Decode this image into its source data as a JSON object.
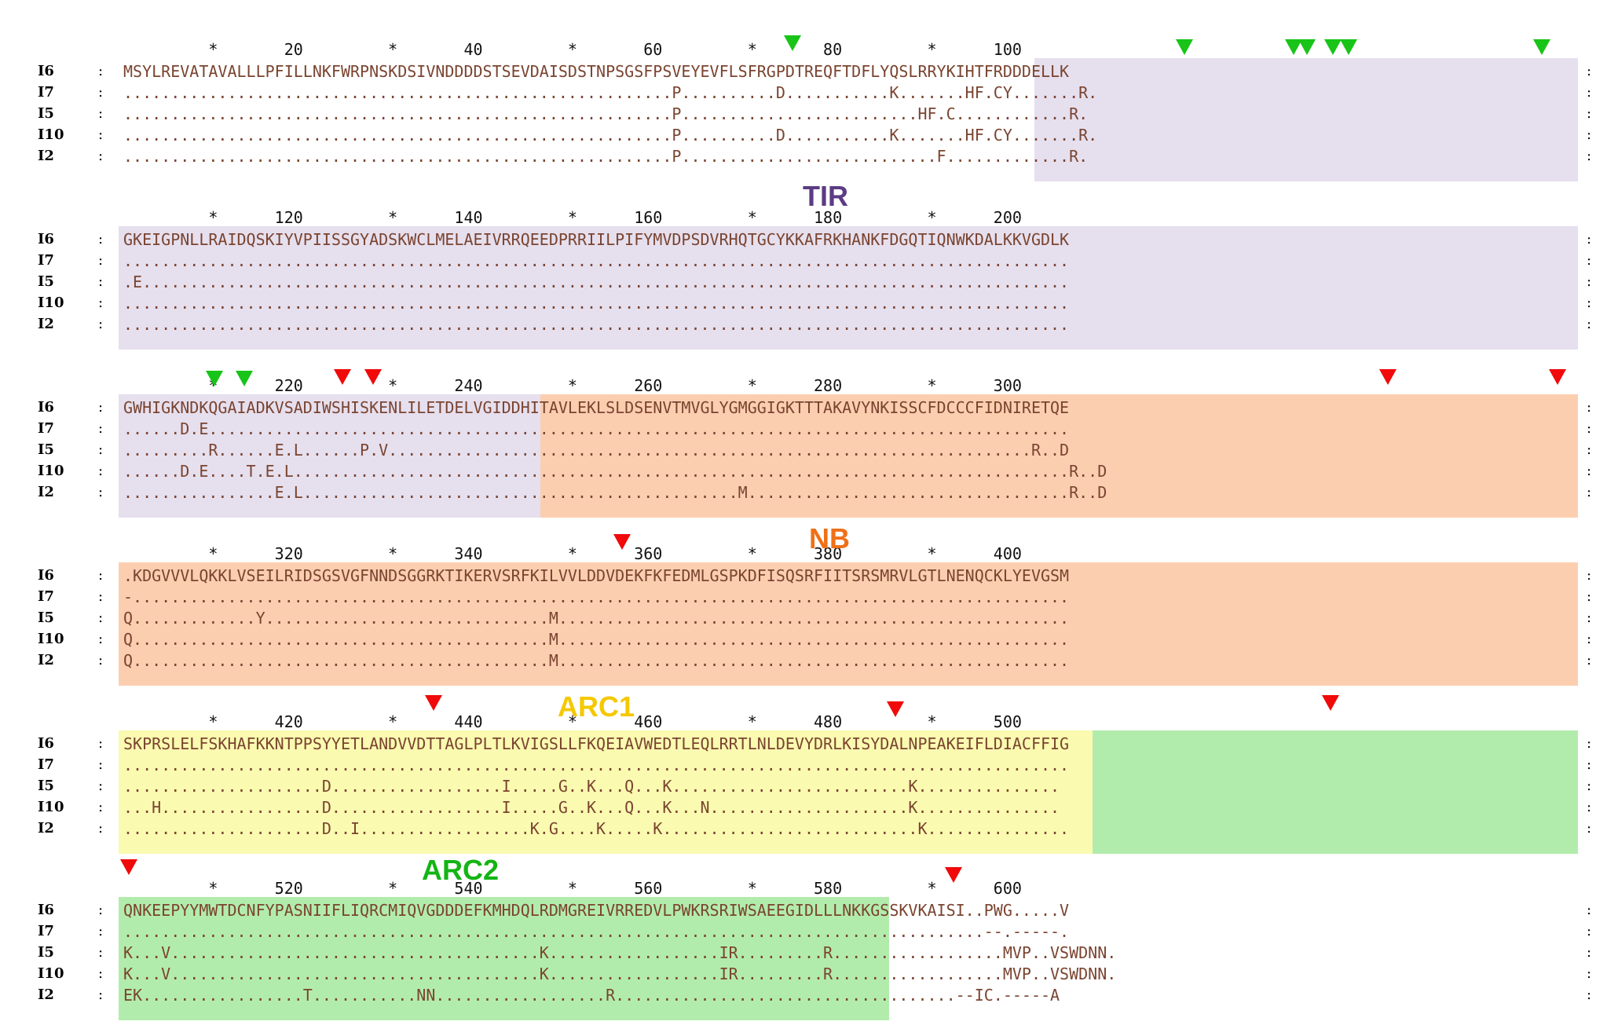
{
  "seq_names": [
    "I6",
    "I7",
    "I5",
    "I10",
    "I2"
  ],
  "colors": {
    "TIR": "#e6dfee",
    "NB": "#fcceb0",
    "ARC1": "#fafab0",
    "ARC2": "#b2ecac",
    "green_marker": "#18c418",
    "red_marker": "#f00a0a"
  },
  "domain_labels": [
    {
      "id": "TIR",
      "text": "TIR",
      "color": "#5c3c84"
    },
    {
      "id": "NB",
      "text": "NB",
      "color": "#f07018"
    },
    {
      "id": "ARC1",
      "text": "ARC1",
      "color": "#f5c800"
    },
    {
      "id": "ARC2",
      "text": "ARC2",
      "color": "#14b414"
    }
  ],
  "blocks": [
    {
      "ruler": "         *       20         *       40         *       60         *       80         *      100",
      "rows": [
        "MSYLREVATAVALLLPFILLNKFWRPNSKDSIVNDDDDSTSEVDAISDSTNPSGSFPSVEYEVFLSFRGPDTREQFTDFLYQSLRRYKIHTFRDDDELLK",
        "..........................................................P..........D...........K.......HF.CY.......R.",
        "..........................................................P.........................HF.C............R.",
        "..........................................................P..........D...........K.......HF.CY.......R.",
        "..........................................................P...........................F.............R."
      ]
    },
    {
      "ruler": "         *      120         *      140         *      160         *      180         *      200",
      "rows": [
        "GKEIGPNLLRAIDQSKIYVPIISSGYADSKWCLMELAEIVRRQEEDPRRIILPIFYMVDPSDVRHQTGCYKKAFRKHANKFDGQTIQNWKDALKKVGDLK",
        "....................................................................................................",
        ".E..................................................................................................",
        "....................................................................................................",
        "...................................................................................................."
      ]
    },
    {
      "ruler": "         *      220         *      240         *      260         *      280         *      300",
      "rows": [
        "GWHIGKNDKQGAIADKVSADIWSHISKENLILETDELVGIDDHITAVLEKLSLDSENVTMVGLYGMGGIGKTTTAKAVYNKISSCFDCCCFIDNIRETQE",
        "......D.E...........................................................................................",
        ".........R......E.L......P.V....................................................................R..D",
        "......D.E....T.E.L..................................................................................R..D",
        "................E.L..............................................M..................................R..D"
      ]
    },
    {
      "ruler": "         *      320         *      340         *      360         *      380         *      400",
      "rows": [
        ".KDGVVVLQKKLVSEILRIDSGSVGFNNDSGGRKTIKERVSRFKILVVLDDVDEKFKFEDMLGSPKDFISQSRFIITSRSMRVLGTLNENQCKLYEVGSM",
        "-...................................................................................................",
        "Q.............Y..............................M......................................................",
        "Q............................................M......................................................",
        "Q............................................M......................................................"
      ]
    },
    {
      "ruler": "         *      420         *      440         *      460         *      480         *      500",
      "rows": [
        "SKPRSLELFSKHAFKKNTPPSYYETLANDVVDTTAGLPLTLKVIGSLLFKQEIAVWEDTLEQLRRTLNLDEVYDRLKISYDALNPEAKEIFLDIACFFIG",
        "....................................................................................................",
        ".....................D..................I.....G..K...Q...K.........................K...............",
        "...H.................D..................I.....G..K...Q...K...N.....................K...............",
        ".....................D..I..................K.G....K.....K...........................K..............."
      ]
    },
    {
      "ruler": "         *      520         *      540         *      560         *      580         *      600",
      "rows": [
        "QNKEEPYYMWTDCNFYPASNIIFLIQRCMIQVGDDDEFKMHDQLRDMGREIVRREDVLPWKRSRIWSAEEGIDLLLNKKGSSKVKAISI..PWG.....V",
        "...........................................................................................--.-----.",
        "K...V.......................................K..................IR.........R..................MVP..VSWDNN.",
        "K...V.......................................K..................IR.........R..................MVP..VSWDNN.",
        "EK.................T...........NN..................R....................................--IC.-----A"
      ]
    }
  ]
}
